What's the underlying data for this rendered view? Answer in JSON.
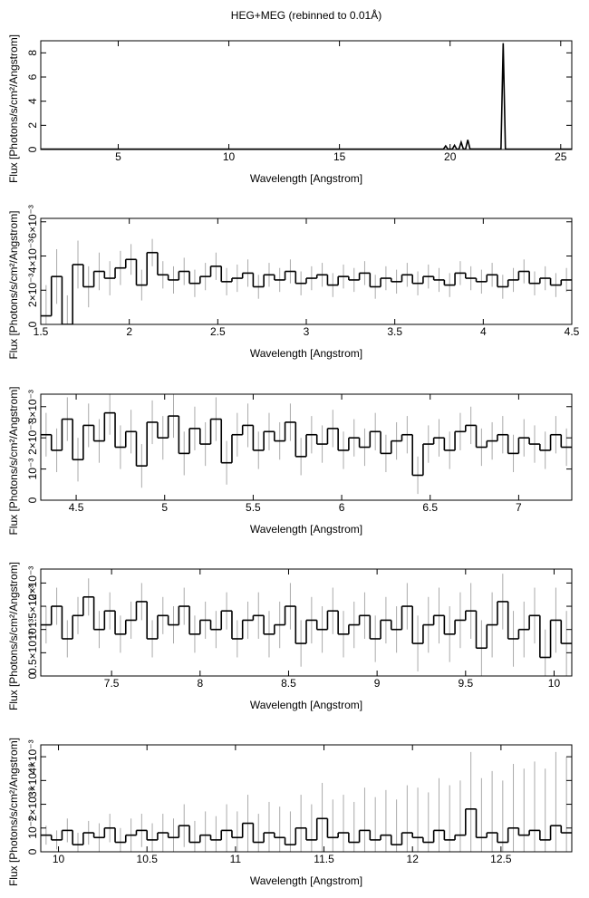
{
  "chart_data": [
    {
      "type": "line",
      "title": "HEG+MEG (rebinned to 0.01Å)",
      "xlabel": "Wavelength [Angstrom]",
      "ylabel": "Flux [Photons/s/cm²/Angstrom]",
      "xlim": [
        1.5,
        25.5
      ],
      "xticks": [
        5,
        10,
        15,
        20,
        25
      ],
      "ylim": [
        0,
        9
      ],
      "yticks": [
        0,
        2,
        4,
        6,
        8
      ],
      "color": "#000000",
      "x": [
        1.5,
        19.7,
        19.8,
        19.9,
        20.1,
        20.2,
        20.3,
        20.4,
        20.5,
        20.6,
        20.7,
        20.8,
        20.9,
        22.3,
        22.4,
        22.5,
        25.5
      ],
      "values": [
        0.03,
        0.03,
        0.3,
        0.03,
        0.03,
        0.35,
        0.03,
        0.04,
        0.6,
        0.04,
        0.04,
        0.8,
        0.04,
        0.04,
        8.8,
        0.04,
        0.03
      ]
    },
    {
      "type": "step",
      "xlabel": "Wavelength [Angstrom]",
      "ylabel": "Flux [Photons/s/cm²/Angstrom]",
      "xlim": [
        1.5,
        4.5
      ],
      "xticks": [
        1.5,
        2,
        2.5,
        3,
        3.5,
        4,
        4.5
      ],
      "ylim": [
        0,
        0.0062
      ],
      "yticks": [
        0,
        {
          "value": 0.002,
          "label": "2×10⁻³"
        },
        {
          "value": 0.004,
          "label": "4×10⁻³"
        },
        {
          "value": 0.006,
          "label": "6×10⁻³"
        }
      ],
      "color": "#000000",
      "error_color": "#aaaaaa",
      "x": [
        1.53,
        1.59,
        1.65,
        1.71,
        1.77,
        1.83,
        1.89,
        1.95,
        2.01,
        2.07,
        2.13,
        2.19,
        2.25,
        2.31,
        2.37,
        2.43,
        2.49,
        2.55,
        2.61,
        2.67,
        2.73,
        2.79,
        2.85,
        2.91,
        2.97,
        3.03,
        3.09,
        3.15,
        3.21,
        3.27,
        3.33,
        3.39,
        3.45,
        3.51,
        3.57,
        3.63,
        3.69,
        3.75,
        3.81,
        3.87,
        3.93,
        3.99,
        4.05,
        4.11,
        4.17,
        4.23,
        4.29,
        4.35,
        4.41,
        4.47
      ],
      "values": [
        0.0005,
        0.0028,
        0.0,
        0.0035,
        0.0022,
        0.0031,
        0.0027,
        0.0033,
        0.0038,
        0.0023,
        0.0042,
        0.0029,
        0.0026,
        0.0031,
        0.0024,
        0.0028,
        0.0034,
        0.0025,
        0.0027,
        0.003,
        0.0022,
        0.0029,
        0.0026,
        0.0031,
        0.0024,
        0.0027,
        0.0029,
        0.0023,
        0.0028,
        0.0026,
        0.003,
        0.0022,
        0.0027,
        0.0025,
        0.0029,
        0.0024,
        0.0028,
        0.0026,
        0.0023,
        0.003,
        0.0027,
        0.0025,
        0.0029,
        0.0022,
        0.0026,
        0.0031,
        0.0024,
        0.0027,
        0.0023,
        0.0026
      ],
      "errors": [
        0.0018,
        0.0016,
        0.0017,
        0.0014,
        0.0012,
        0.0011,
        0.001,
        0.001,
        0.0009,
        0.0009,
        0.0008,
        0.0008,
        0.0008,
        0.0008,
        0.0008,
        0.0008,
        0.0008,
        0.0008,
        0.0008,
        0.0008,
        0.0007,
        0.0007,
        0.0007,
        0.0007,
        0.0007,
        0.0007,
        0.0007,
        0.0007,
        0.0007,
        0.0007,
        0.0007,
        0.0007,
        0.0007,
        0.0007,
        0.0007,
        0.0007,
        0.0007,
        0.0007,
        0.0007,
        0.0007,
        0.0007,
        0.0007,
        0.0007,
        0.0007,
        0.0007,
        0.0007,
        0.0007,
        0.0007,
        0.0007,
        0.0007
      ]
    },
    {
      "type": "step",
      "xlabel": "Wavelength [Angstrom]",
      "ylabel": "Flux [Photons/s/cm²/Angstrom]",
      "xlim": [
        4.3,
        7.3
      ],
      "xticks": [
        4.5,
        5,
        5.5,
        6,
        6.5,
        7
      ],
      "ylim": [
        0,
        0.0034
      ],
      "yticks": [
        0,
        {
          "value": 0.001,
          "label": "10⁻³"
        },
        {
          "value": 0.002,
          "label": "2×10⁻³"
        },
        {
          "value": 0.003,
          "label": "3×10⁻³"
        }
      ],
      "color": "#000000",
      "error_color": "#aaaaaa",
      "x": [
        4.33,
        4.39,
        4.45,
        4.51,
        4.57,
        4.63,
        4.69,
        4.75,
        4.81,
        4.87,
        4.93,
        4.99,
        5.05,
        5.11,
        5.17,
        5.23,
        5.29,
        5.35,
        5.41,
        5.47,
        5.53,
        5.59,
        5.65,
        5.71,
        5.77,
        5.83,
        5.89,
        5.95,
        6.01,
        6.07,
        6.13,
        6.19,
        6.25,
        6.31,
        6.37,
        6.43,
        6.49,
        6.55,
        6.61,
        6.67,
        6.73,
        6.79,
        6.85,
        6.91,
        6.97,
        7.03,
        7.09,
        7.15,
        7.21,
        7.27
      ],
      "values": [
        0.0021,
        0.0016,
        0.0026,
        0.0013,
        0.0024,
        0.0019,
        0.0028,
        0.0017,
        0.0022,
        0.0011,
        0.0025,
        0.002,
        0.0027,
        0.0015,
        0.0023,
        0.0018,
        0.0026,
        0.0012,
        0.0021,
        0.0024,
        0.0016,
        0.0022,
        0.0019,
        0.0025,
        0.0014,
        0.0021,
        0.0018,
        0.0023,
        0.0016,
        0.002,
        0.0017,
        0.0022,
        0.0015,
        0.0019,
        0.0021,
        0.0008,
        0.0018,
        0.002,
        0.0016,
        0.0022,
        0.0024,
        0.0017,
        0.0019,
        0.0021,
        0.0015,
        0.002,
        0.0018,
        0.0016,
        0.0021,
        0.0017
      ],
      "errors": [
        0.0007,
        0.0007,
        0.0007,
        0.0007,
        0.0007,
        0.0007,
        0.0007,
        0.0007,
        0.0007,
        0.0007,
        0.0007,
        0.0007,
        0.0007,
        0.0007,
        0.0007,
        0.0007,
        0.0007,
        0.0007,
        0.0007,
        0.0007,
        0.0006,
        0.0006,
        0.0006,
        0.0006,
        0.0006,
        0.0006,
        0.0006,
        0.0006,
        0.0006,
        0.0006,
        0.0006,
        0.0006,
        0.0006,
        0.0006,
        0.0006,
        0.0006,
        0.0006,
        0.0006,
        0.0006,
        0.0006,
        0.0006,
        0.0006,
        0.0006,
        0.0006,
        0.0006,
        0.0006,
        0.0006,
        0.0006,
        0.0006,
        0.0006
      ]
    },
    {
      "type": "step",
      "xlabel": "Wavelength [Angstrom]",
      "ylabel": "Flux [Photons/s/cm²/Angstrom]",
      "xlim": [
        7.1,
        10.1
      ],
      "xticks": [
        7.5,
        8,
        8.5,
        9,
        9.5,
        10
      ],
      "ylim": [
        0,
        0.0023
      ],
      "yticks": [
        0,
        {
          "value": 0.0005,
          "label": "0.5×10⁻³"
        },
        {
          "value": 0.001,
          "label": "10⁻³"
        },
        {
          "value": 0.0015,
          "label": "1.5×10⁻³"
        },
        {
          "value": 0.002,
          "label": "2×10⁻³"
        }
      ],
      "color": "#000000",
      "error_color": "#aaaaaa",
      "x": [
        7.13,
        7.19,
        7.25,
        7.31,
        7.37,
        7.43,
        7.49,
        7.55,
        7.61,
        7.67,
        7.73,
        7.79,
        7.85,
        7.91,
        7.97,
        8.03,
        8.09,
        8.15,
        8.21,
        8.27,
        8.33,
        8.39,
        8.45,
        8.51,
        8.57,
        8.63,
        8.69,
        8.75,
        8.81,
        8.87,
        8.93,
        8.99,
        9.05,
        9.11,
        9.17,
        9.23,
        9.29,
        9.35,
        9.41,
        9.47,
        9.53,
        9.59,
        9.65,
        9.71,
        9.77,
        9.83,
        9.89,
        9.95,
        10.01,
        10.07
      ],
      "values": [
        0.0011,
        0.0015,
        0.0008,
        0.0013,
        0.0017,
        0.001,
        0.0014,
        0.0009,
        0.0012,
        0.0016,
        0.0008,
        0.0013,
        0.0011,
        0.0015,
        0.0009,
        0.0012,
        0.001,
        0.0014,
        0.0008,
        0.0012,
        0.0013,
        0.0009,
        0.0011,
        0.0015,
        0.0007,
        0.0012,
        0.001,
        0.0014,
        0.0009,
        0.0011,
        0.0013,
        0.0008,
        0.0012,
        0.001,
        0.0015,
        0.0007,
        0.0011,
        0.0013,
        0.0009,
        0.0012,
        0.0014,
        0.0006,
        0.0011,
        0.0016,
        0.0008,
        0.001,
        0.0013,
        0.0004,
        0.0012,
        0.0007
      ],
      "errors": [
        0.0004,
        0.0004,
        0.0004,
        0.0004,
        0.0004,
        0.0004,
        0.0004,
        0.0004,
        0.0004,
        0.0004,
        0.0004,
        0.0004,
        0.0004,
        0.0004,
        0.0004,
        0.0004,
        0.0004,
        0.0004,
        0.0004,
        0.0004,
        0.0005,
        0.0005,
        0.0005,
        0.0005,
        0.0005,
        0.0005,
        0.0005,
        0.0005,
        0.0005,
        0.0005,
        0.0005,
        0.0005,
        0.0005,
        0.0005,
        0.0005,
        0.0006,
        0.0006,
        0.0006,
        0.0006,
        0.0006,
        0.0006,
        0.0006,
        0.0007,
        0.0006,
        0.0006,
        0.0006,
        0.0006,
        0.0006,
        0.0007,
        0.0007
      ]
    },
    {
      "type": "step",
      "xlabel": "Wavelength [Angstrom]",
      "ylabel": "Flux [Photons/s/cm²/Angstrom]",
      "xlim": [
        9.9,
        12.9
      ],
      "xticks": [
        10,
        10.5,
        11,
        11.5,
        12,
        12.5
      ],
      "ylim": [
        0,
        0.0045
      ],
      "yticks": [
        0,
        {
          "value": 0.001,
          "label": "10⁻³"
        },
        {
          "value": 0.002,
          "label": "2×10⁻³"
        },
        {
          "value": 0.003,
          "label": "3×10⁻³"
        },
        {
          "value": 0.004,
          "label": "4×10⁻³"
        }
      ],
      "color": "#000000",
      "error_color": "#aaaaaa",
      "x": [
        9.93,
        9.99,
        10.05,
        10.11,
        10.17,
        10.23,
        10.29,
        10.35,
        10.41,
        10.47,
        10.53,
        10.59,
        10.65,
        10.71,
        10.77,
        10.83,
        10.89,
        10.95,
        11.01,
        11.07,
        11.13,
        11.19,
        11.25,
        11.31,
        11.37,
        11.43,
        11.49,
        11.55,
        11.61,
        11.67,
        11.73,
        11.79,
        11.85,
        11.91,
        11.97,
        12.03,
        12.09,
        12.15,
        12.21,
        12.27,
        12.33,
        12.39,
        12.45,
        12.51,
        12.57,
        12.63,
        12.69,
        12.75,
        12.81,
        12.87
      ],
      "values": [
        0.0007,
        0.0005,
        0.0009,
        0.0003,
        0.0008,
        0.0006,
        0.001,
        0.0004,
        0.0007,
        0.0009,
        0.0005,
        0.0008,
        0.0006,
        0.0011,
        0.0004,
        0.0007,
        0.0005,
        0.0009,
        0.0006,
        0.0012,
        0.0004,
        0.0008,
        0.0006,
        0.0003,
        0.001,
        0.0005,
        0.0014,
        0.0006,
        0.0008,
        0.0004,
        0.0009,
        0.0005,
        0.0007,
        0.0003,
        0.0008,
        0.0006,
        0.0004,
        0.0009,
        0.0005,
        0.0007,
        0.0018,
        0.0006,
        0.0008,
        0.0004,
        0.001,
        0.0007,
        0.0009,
        0.0005,
        0.0011,
        0.0008
      ],
      "errors": [
        0.0004,
        0.0004,
        0.0005,
        0.0005,
        0.0005,
        0.0006,
        0.0006,
        0.0006,
        0.0007,
        0.0007,
        0.0007,
        0.0008,
        0.0008,
        0.0009,
        0.0009,
        0.001,
        0.001,
        0.0011,
        0.0011,
        0.0012,
        0.0012,
        0.0013,
        0.0013,
        0.0014,
        0.0014,
        0.0015,
        0.0015,
        0.0016,
        0.0016,
        0.0017,
        0.0018,
        0.0018,
        0.0019,
        0.0019,
        0.002,
        0.0021,
        0.0021,
        0.0022,
        0.0023,
        0.0023,
        0.0024,
        0.0025,
        0.0026,
        0.0026,
        0.0027,
        0.0028,
        0.0029,
        0.003,
        0.0031,
        0.0032
      ]
    }
  ]
}
